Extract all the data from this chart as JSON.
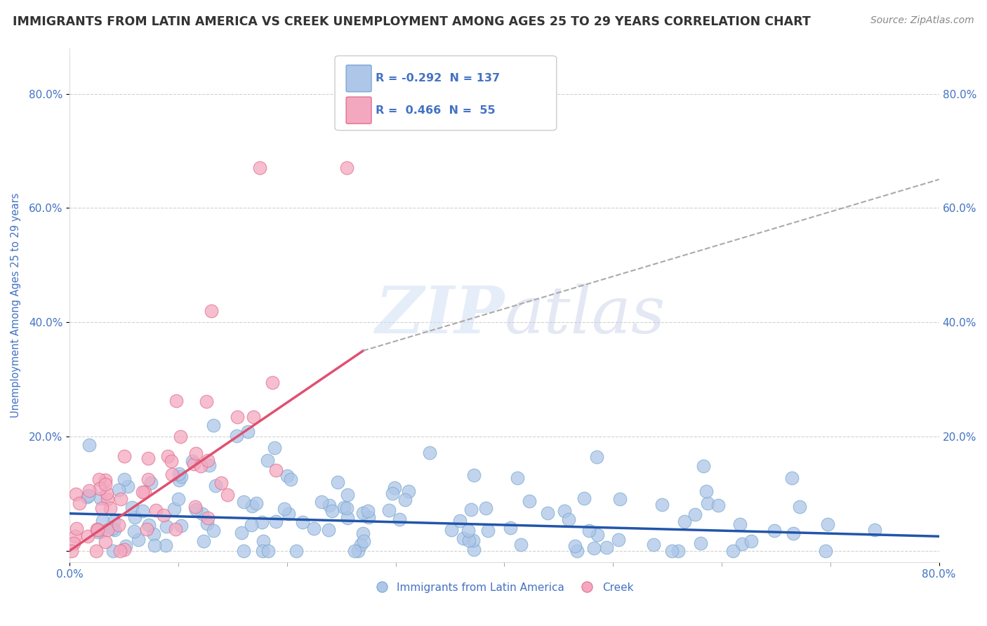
{
  "title": "IMMIGRANTS FROM LATIN AMERICA VS CREEK UNEMPLOYMENT AMONG AGES 25 TO 29 YEARS CORRELATION CHART",
  "source": "Source: ZipAtlas.com",
  "ylabel": "Unemployment Among Ages 25 to 29 years",
  "xlim": [
    0.0,
    0.8
  ],
  "ylim": [
    -0.02,
    0.88
  ],
  "xticks_show": [
    0.0,
    0.8
  ],
  "xticks_minor": [
    0.1,
    0.2,
    0.3,
    0.4,
    0.5,
    0.6,
    0.7
  ],
  "yticks": [
    0.0,
    0.2,
    0.4,
    0.6,
    0.8
  ],
  "series": [
    {
      "label": "Immigrants from Latin America",
      "R": -0.292,
      "N": 137,
      "color": "#aec6e8",
      "trend_color": "#2255aa",
      "marker_edge": "#7aaad0",
      "R_display": "-0.292",
      "N_display": "137"
    },
    {
      "label": "Creek",
      "R": 0.466,
      "N": 55,
      "color": "#f4a8c0",
      "trend_color": "#e05070",
      "marker_edge": "#e07090",
      "R_display": "0.466",
      "N_display": "55"
    }
  ],
  "watermark_zip": "ZIP",
  "watermark_atlas": "atlas",
  "background_color": "#ffffff",
  "grid_color": "#cccccc",
  "title_color": "#333333",
  "tick_label_color": "#4472c4",
  "legend_text_color": "#333333",
  "legend_R_color": "#4472c4"
}
